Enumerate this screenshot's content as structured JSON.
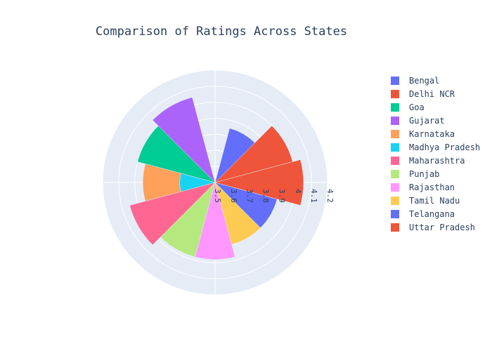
{
  "chart_data": {
    "type": "barpolar",
    "title": "Comparison of Ratings Across States",
    "radial_axis": {
      "range": [
        3.5,
        4.2
      ],
      "ticks": [
        "3.5",
        "3.6",
        "3.7",
        "3.8",
        "3.9",
        "4",
        "4.1",
        "4.2"
      ]
    },
    "angular_grid_degrees": 90,
    "legend_position": "right",
    "series": [
      {
        "name": "Bengal",
        "value": 3.85,
        "theta": 60,
        "color": "#636efa"
      },
      {
        "name": "Delhi NCR",
        "value": 4.0,
        "theta": 30,
        "color": "#ef553b"
      },
      {
        "name": "Goa",
        "value": 4.0,
        "theta": 150,
        "color": "#00cc96"
      },
      {
        "name": "Gujarat",
        "value": 4.05,
        "theta": 120,
        "color": "#ab63fa"
      },
      {
        "name": "Karnataka",
        "value": 3.95,
        "theta": 180,
        "color": "#ffa15a"
      },
      {
        "name": "Madhya Pradesh",
        "value": 3.72,
        "theta": 180,
        "color": "#19d3f3"
      },
      {
        "name": "Maharashtra",
        "value": 4.05,
        "theta": 210,
        "color": "#ff6692"
      },
      {
        "name": "Punjab",
        "value": 3.98,
        "theta": 240,
        "color": "#b6e880"
      },
      {
        "name": "Rajasthan",
        "value": 3.98,
        "theta": 270,
        "color": "#ff97ff"
      },
      {
        "name": "Tamil Nadu",
        "value": 3.9,
        "theta": 300,
        "color": "#fecb52"
      },
      {
        "name": "Telangana",
        "value": 3.9,
        "theta": 330,
        "color": "#636efa"
      },
      {
        "name": "Uttar Pradesh",
        "value": 4.05,
        "theta": 0,
        "color": "#ef553b"
      }
    ]
  }
}
